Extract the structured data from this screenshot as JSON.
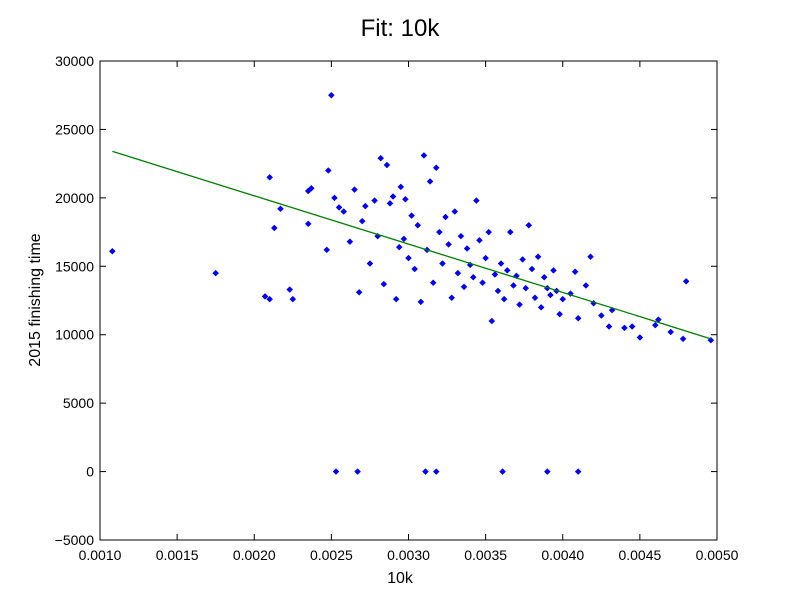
{
  "chart_data": {
    "type": "scatter",
    "title": "Fit: 10k",
    "xlabel": "10k",
    "ylabel": "2015 finishing time",
    "xlim": [
      0.001,
      0.005
    ],
    "ylim": [
      -5000,
      30000
    ],
    "xticks": [
      "0.0010",
      "0.0015",
      "0.0020",
      "0.0025",
      "0.0030",
      "0.0035",
      "0.0040",
      "0.0045",
      "0.0050"
    ],
    "yticks": [
      "−5000",
      "0",
      "5000",
      "10000",
      "15000",
      "20000",
      "25000",
      "30000"
    ],
    "grid": false,
    "legend": "none",
    "colors": {
      "points": "#0000ff",
      "fit": "#007f00"
    },
    "series": [
      {
        "kind": "points",
        "points": [
          [
            0.00108,
            16100
          ],
          [
            0.00175,
            14500
          ],
          [
            0.00207,
            12800
          ],
          [
            0.0021,
            12600
          ],
          [
            0.0021,
            21500
          ],
          [
            0.00213,
            17800
          ],
          [
            0.00217,
            19200
          ],
          [
            0.00223,
            13300
          ],
          [
            0.00225,
            12600
          ],
          [
            0.00235,
            18100
          ],
          [
            0.00235,
            20500
          ],
          [
            0.00237,
            20700
          ],
          [
            0.00247,
            16200
          ],
          [
            0.00248,
            22000
          ],
          [
            0.0025,
            27500
          ],
          [
            0.00252,
            20000
          ],
          [
            0.00255,
            19300
          ],
          [
            0.00258,
            19000
          ],
          [
            0.00262,
            16800
          ],
          [
            0.00265,
            20600
          ],
          [
            0.00268,
            13100
          ],
          [
            0.0027,
            18300
          ],
          [
            0.00272,
            19400
          ],
          [
            0.00275,
            15200
          ],
          [
            0.00278,
            19800
          ],
          [
            0.0028,
            17200
          ],
          [
            0.00282,
            22900
          ],
          [
            0.00284,
            13700
          ],
          [
            0.00286,
            22400
          ],
          [
            0.00288,
            19600
          ],
          [
            0.0029,
            20100
          ],
          [
            0.00292,
            12600
          ],
          [
            0.00294,
            16400
          ],
          [
            0.00295,
            20800
          ],
          [
            0.00297,
            17000
          ],
          [
            0.00298,
            19900
          ],
          [
            0.003,
            15600
          ],
          [
            0.00302,
            18700
          ],
          [
            0.00304,
            14800
          ],
          [
            0.00306,
            18000
          ],
          [
            0.00308,
            12400
          ],
          [
            0.0031,
            23100
          ],
          [
            0.00312,
            16200
          ],
          [
            0.00314,
            21200
          ],
          [
            0.00316,
            13800
          ],
          [
            0.00318,
            22200
          ],
          [
            0.0032,
            17500
          ],
          [
            0.00322,
            15200
          ],
          [
            0.00324,
            18600
          ],
          [
            0.00326,
            16600
          ],
          [
            0.00328,
            12700
          ],
          [
            0.0033,
            19000
          ],
          [
            0.00332,
            14500
          ],
          [
            0.00334,
            17200
          ],
          [
            0.00336,
            13500
          ],
          [
            0.00338,
            16300
          ],
          [
            0.0034,
            15100
          ],
          [
            0.00342,
            14200
          ],
          [
            0.00344,
            19800
          ],
          [
            0.00346,
            16900
          ],
          [
            0.00348,
            13800
          ],
          [
            0.0035,
            15600
          ],
          [
            0.00352,
            17500
          ],
          [
            0.00354,
            11000
          ],
          [
            0.00356,
            14400
          ],
          [
            0.00358,
            13200
          ],
          [
            0.0036,
            15200
          ],
          [
            0.00362,
            12600
          ],
          [
            0.00364,
            14700
          ],
          [
            0.00366,
            17500
          ],
          [
            0.00368,
            13600
          ],
          [
            0.0037,
            14300
          ],
          [
            0.00372,
            12200
          ],
          [
            0.00374,
            15500
          ],
          [
            0.00376,
            13400
          ],
          [
            0.00378,
            18000
          ],
          [
            0.0038,
            14800
          ],
          [
            0.00382,
            12700
          ],
          [
            0.00384,
            15700
          ],
          [
            0.00386,
            12000
          ],
          [
            0.00388,
            14200
          ],
          [
            0.0039,
            13400
          ],
          [
            0.00392,
            12900
          ],
          [
            0.00394,
            14700
          ],
          [
            0.00396,
            13200
          ],
          [
            0.00398,
            11500
          ],
          [
            0.004,
            12600
          ],
          [
            0.00405,
            13000
          ],
          [
            0.00408,
            14600
          ],
          [
            0.0041,
            11200
          ],
          [
            0.00415,
            13600
          ],
          [
            0.00418,
            15700
          ],
          [
            0.0042,
            12300
          ],
          [
            0.00425,
            11400
          ],
          [
            0.0043,
            10600
          ],
          [
            0.00432,
            11800
          ],
          [
            0.0044,
            10500
          ],
          [
            0.00445,
            10600
          ],
          [
            0.0045,
            9800
          ],
          [
            0.0046,
            10700
          ],
          [
            0.00462,
            11100
          ],
          [
            0.0047,
            10200
          ],
          [
            0.00478,
            9700
          ],
          [
            0.0048,
            13900
          ],
          [
            0.00496,
            9600
          ],
          [
            0.00253,
            0
          ],
          [
            0.00267,
            0
          ],
          [
            0.00311,
            0
          ],
          [
            0.00318,
            0
          ],
          [
            0.00361,
            0
          ],
          [
            0.0039,
            0
          ],
          [
            0.0041,
            0
          ]
        ]
      },
      {
        "kind": "fit_line",
        "x": [
          0.00108,
          0.00496
        ],
        "y": [
          23400,
          9700
        ]
      }
    ]
  }
}
